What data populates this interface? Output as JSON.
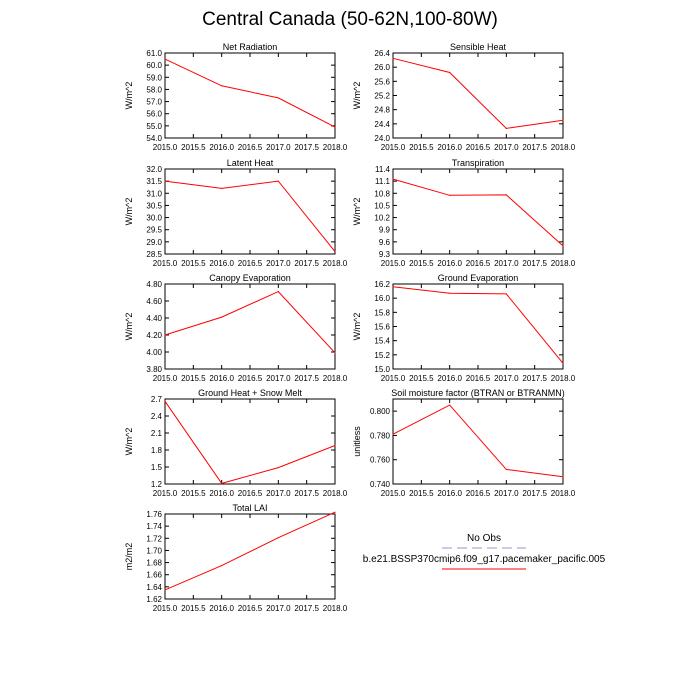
{
  "page": {
    "title": "Central Canada (50-62N,100-80W)"
  },
  "colors": {
    "model_line": "#ff0000",
    "obs_line": "#b8b8e8",
    "axis": "#000000"
  },
  "legend": {
    "obs_label": "No Obs",
    "model_label": "b.e21.BSSP370cmip6.f09_g17.pacemaker_pacific.005"
  },
  "chart_data": [
    {
      "type": "line",
      "title": "Net Radiation",
      "ylabel": "W/m^2",
      "x": [
        2015,
        2016,
        2017,
        2018
      ],
      "values": [
        60.5,
        58.3,
        57.3,
        54.9
      ],
      "xlim": [
        2015,
        2018
      ],
      "ylim": [
        54,
        61
      ],
      "xticks": [
        "2015.0",
        "2015.5",
        "2016.0",
        "2016.5",
        "2017.0",
        "2017.5",
        "2018.0"
      ],
      "yticks": [
        "54.0",
        "55.0",
        "56.0",
        "57.0",
        "58.0",
        "59.0",
        "60.0",
        "61.0"
      ]
    },
    {
      "type": "line",
      "title": "Sensible Heat",
      "ylabel": "W/m^2",
      "x": [
        2015,
        2016,
        2017,
        2018
      ],
      "values": [
        26.25,
        25.85,
        24.27,
        24.5
      ],
      "xlim": [
        2015,
        2018
      ],
      "ylim": [
        24.0,
        26.4
      ],
      "xticks": [
        "2015.0",
        "2015.5",
        "2016.0",
        "2016.5",
        "2017.0",
        "2017.5",
        "2018.0"
      ],
      "yticks": [
        "24.0",
        "24.4",
        "24.8",
        "25.2",
        "25.6",
        "26.0",
        "26.4"
      ]
    },
    {
      "type": "line",
      "title": "Latent Heat",
      "ylabel": "W/m^2",
      "x": [
        2015,
        2016,
        2017,
        2018
      ],
      "values": [
        31.5,
        31.2,
        31.5,
        28.6
      ],
      "xlim": [
        2015,
        2018
      ],
      "ylim": [
        28.5,
        32.0
      ],
      "xticks": [
        "2015.0",
        "2015.5",
        "2016.0",
        "2016.5",
        "2017.0",
        "2017.5",
        "2018.0"
      ],
      "yticks": [
        "28.5",
        "29.0",
        "29.5",
        "30.0",
        "30.5",
        "31.0",
        "31.5",
        "32.0"
      ]
    },
    {
      "type": "line",
      "title": "Transpiration",
      "ylabel": "W/m^2",
      "x": [
        2015,
        2016,
        2017,
        2018
      ],
      "values": [
        11.15,
        10.75,
        10.76,
        9.5
      ],
      "xlim": [
        2015,
        2018
      ],
      "ylim": [
        9.3,
        11.4
      ],
      "xticks": [
        "2015.0",
        "2015.5",
        "2016.0",
        "2016.5",
        "2017.0",
        "2017.5",
        "2018.0"
      ],
      "yticks": [
        "9.3",
        "9.6",
        "9.9",
        "10.2",
        "10.5",
        "10.8",
        "11.1",
        "11.4"
      ]
    },
    {
      "type": "line",
      "title": "Canopy Evaporation",
      "ylabel": "W/m^2",
      "x": [
        2015,
        2016,
        2017,
        2018
      ],
      "values": [
        4.2,
        4.41,
        4.71,
        3.99
      ],
      "xlim": [
        2015,
        2018
      ],
      "ylim": [
        3.8,
        4.8
      ],
      "xticks": [
        "2015.0",
        "2015.5",
        "2016.0",
        "2016.5",
        "2017.0",
        "2017.5",
        "2018.0"
      ],
      "yticks": [
        "3.80",
        "4.00",
        "4.20",
        "4.40",
        "4.60",
        "4.80"
      ]
    },
    {
      "type": "line",
      "title": "Ground Evaporation",
      "ylabel": "W/m^2",
      "x": [
        2015,
        2016,
        2017,
        2018
      ],
      "values": [
        16.16,
        16.07,
        16.06,
        15.08
      ],
      "xlim": [
        2015,
        2018
      ],
      "ylim": [
        15.0,
        16.2
      ],
      "xticks": [
        "2015.0",
        "2015.5",
        "2016.0",
        "2016.5",
        "2017.0",
        "2017.5",
        "2018.0"
      ],
      "yticks": [
        "15.0",
        "15.2",
        "15.4",
        "15.6",
        "15.8",
        "16.0",
        "16.2"
      ]
    },
    {
      "type": "line",
      "title": "Ground Heat + Snow Melt",
      "ylabel": "W/m^2",
      "x": [
        2015,
        2016,
        2017,
        2018
      ],
      "values": [
        2.66,
        1.21,
        1.49,
        1.88
      ],
      "xlim": [
        2015,
        2018
      ],
      "ylim": [
        1.2,
        2.7
      ],
      "xticks": [
        "2015.0",
        "2015.5",
        "2016.0",
        "2016.5",
        "2017.0",
        "2017.5",
        "2018.0"
      ],
      "yticks": [
        "1.2",
        "1.5",
        "1.8",
        "2.1",
        "2.4",
        "2.7"
      ]
    },
    {
      "type": "line",
      "title": "Soil moisture factor (BTRAN or BTRANMN)",
      "ylabel": "unitless",
      "x": [
        2015,
        2016,
        2017,
        2018
      ],
      "values": [
        0.781,
        0.805,
        0.752,
        0.746
      ],
      "xlim": [
        2015,
        2018
      ],
      "ylim": [
        0.74,
        0.81
      ],
      "xticks": [
        "2015.0",
        "2015.5",
        "2016.0",
        "2016.5",
        "2017.0",
        "2017.5",
        "2018.0"
      ],
      "yticks": [
        "0.740",
        "0.760",
        "0.780",
        "0.800"
      ]
    },
    {
      "type": "line",
      "title": "Total LAI",
      "ylabel": "m2/m2",
      "x": [
        2015,
        2016,
        2017,
        2018
      ],
      "values": [
        1.635,
        1.675,
        1.721,
        1.763
      ],
      "xlim": [
        2015,
        2018
      ],
      "ylim": [
        1.62,
        1.76
      ],
      "xticks": [
        "2015.0",
        "2015.5",
        "2016.0",
        "2016.5",
        "2017.0",
        "2017.5",
        "2018.0"
      ],
      "yticks": [
        "1.62",
        "1.64",
        "1.66",
        "1.68",
        "1.70",
        "1.72",
        "1.74",
        "1.76"
      ]
    }
  ]
}
